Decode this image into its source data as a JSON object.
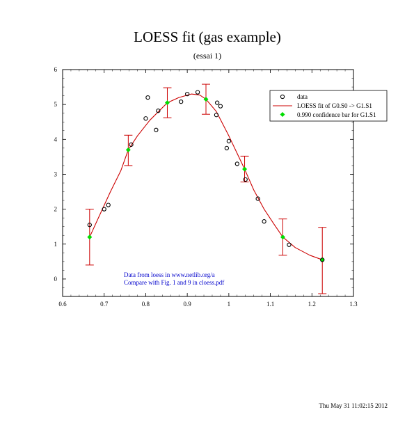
{
  "chart_data": {
    "type": "scatter",
    "title": "LOESS fit (gas example)",
    "subtitle": "(essai 1)",
    "xlim": [
      0.6,
      1.3
    ],
    "ylim": [
      -0.5,
      6
    ],
    "xticks": [
      0.6,
      0.7,
      0.8,
      0.9,
      1,
      1.1,
      1.2,
      1.3
    ],
    "xtick_labels": [
      "0.6",
      "0.7",
      "0.8",
      "0.9",
      "1",
      "1.1",
      "1.2",
      "1.3"
    ],
    "yticks": [
      0,
      1,
      2,
      3,
      4,
      5,
      6
    ],
    "ytick_labels": [
      "0",
      "1",
      "2",
      "3",
      "4",
      "5",
      "6"
    ],
    "legend_position": "top-right",
    "legend": [
      {
        "label": "data",
        "marker": "open-circle",
        "color": "#000000"
      },
      {
        "label": "LOESS fit of G0.S0  -> G1.S1",
        "marker": "line",
        "color": "#cc0000"
      },
      {
        "label": "0.990 confidence bar for G1.S1",
        "marker": "diamond",
        "color": "#00dd00"
      }
    ],
    "series": [
      {
        "name": "data",
        "kind": "scatter",
        "color": "#000000",
        "points": [
          [
            0.665,
            1.55
          ],
          [
            0.7,
            2.0
          ],
          [
            0.71,
            2.12
          ],
          [
            0.765,
            3.85
          ],
          [
            0.8,
            4.6
          ],
          [
            0.805,
            5.2
          ],
          [
            0.825,
            4.27
          ],
          [
            0.83,
            4.82
          ],
          [
            0.885,
            5.08
          ],
          [
            0.9,
            5.3
          ],
          [
            0.925,
            5.35
          ],
          [
            0.97,
            4.7
          ],
          [
            0.972,
            5.05
          ],
          [
            0.98,
            4.95
          ],
          [
            0.995,
            3.75
          ],
          [
            1.0,
            3.95
          ],
          [
            1.02,
            3.3
          ],
          [
            1.04,
            2.85
          ],
          [
            1.07,
            2.3
          ],
          [
            1.085,
            1.65
          ],
          [
            1.145,
            0.98
          ],
          [
            1.225,
            0.55
          ]
        ]
      },
      {
        "name": "LOESS fit of G0.S0  -> G1.S1",
        "kind": "line",
        "color": "#cc0000",
        "points": [
          [
            0.665,
            1.2
          ],
          [
            0.69,
            1.85
          ],
          [
            0.715,
            2.5
          ],
          [
            0.74,
            3.1
          ],
          [
            0.758,
            3.7
          ],
          [
            0.78,
            4.1
          ],
          [
            0.81,
            4.55
          ],
          [
            0.852,
            5.05
          ],
          [
            0.88,
            5.2
          ],
          [
            0.91,
            5.3
          ],
          [
            0.93,
            5.27
          ],
          [
            0.945,
            5.15
          ],
          [
            0.97,
            4.8
          ],
          [
            1.0,
            4.1
          ],
          [
            1.02,
            3.6
          ],
          [
            1.038,
            3.15
          ],
          [
            1.06,
            2.55
          ],
          [
            1.085,
            2.0
          ],
          [
            1.11,
            1.55
          ],
          [
            1.13,
            1.2
          ],
          [
            1.16,
            0.9
          ],
          [
            1.195,
            0.68
          ],
          [
            1.225,
            0.55
          ]
        ]
      },
      {
        "name": "0.990 confidence bar for G1.S1",
        "kind": "errorbar",
        "color": "#00dd00",
        "bar_color": "#cc0000",
        "points": [
          {
            "x": 0.665,
            "y": 1.2,
            "lo": 0.4,
            "hi": 2.0
          },
          {
            "x": 0.758,
            "y": 3.7,
            "lo": 3.25,
            "hi": 4.12
          },
          {
            "x": 0.852,
            "y": 5.05,
            "lo": 4.62,
            "hi": 5.48
          },
          {
            "x": 0.945,
            "y": 5.15,
            "lo": 4.72,
            "hi": 5.58
          },
          {
            "x": 1.038,
            "y": 3.15,
            "lo": 2.78,
            "hi": 3.52
          },
          {
            "x": 1.13,
            "y": 1.2,
            "lo": 0.68,
            "hi": 1.72
          },
          {
            "x": 1.225,
            "y": 0.55,
            "lo": -0.42,
            "hi": 1.48
          }
        ]
      }
    ],
    "annotations": [
      "Data from loess in www.netlib.org/a",
      "Compare with Fig. 1 and 9 in cloess.pdf"
    ]
  },
  "footer": {
    "timestamp": "Thu May 31 11:02:15 2012"
  }
}
